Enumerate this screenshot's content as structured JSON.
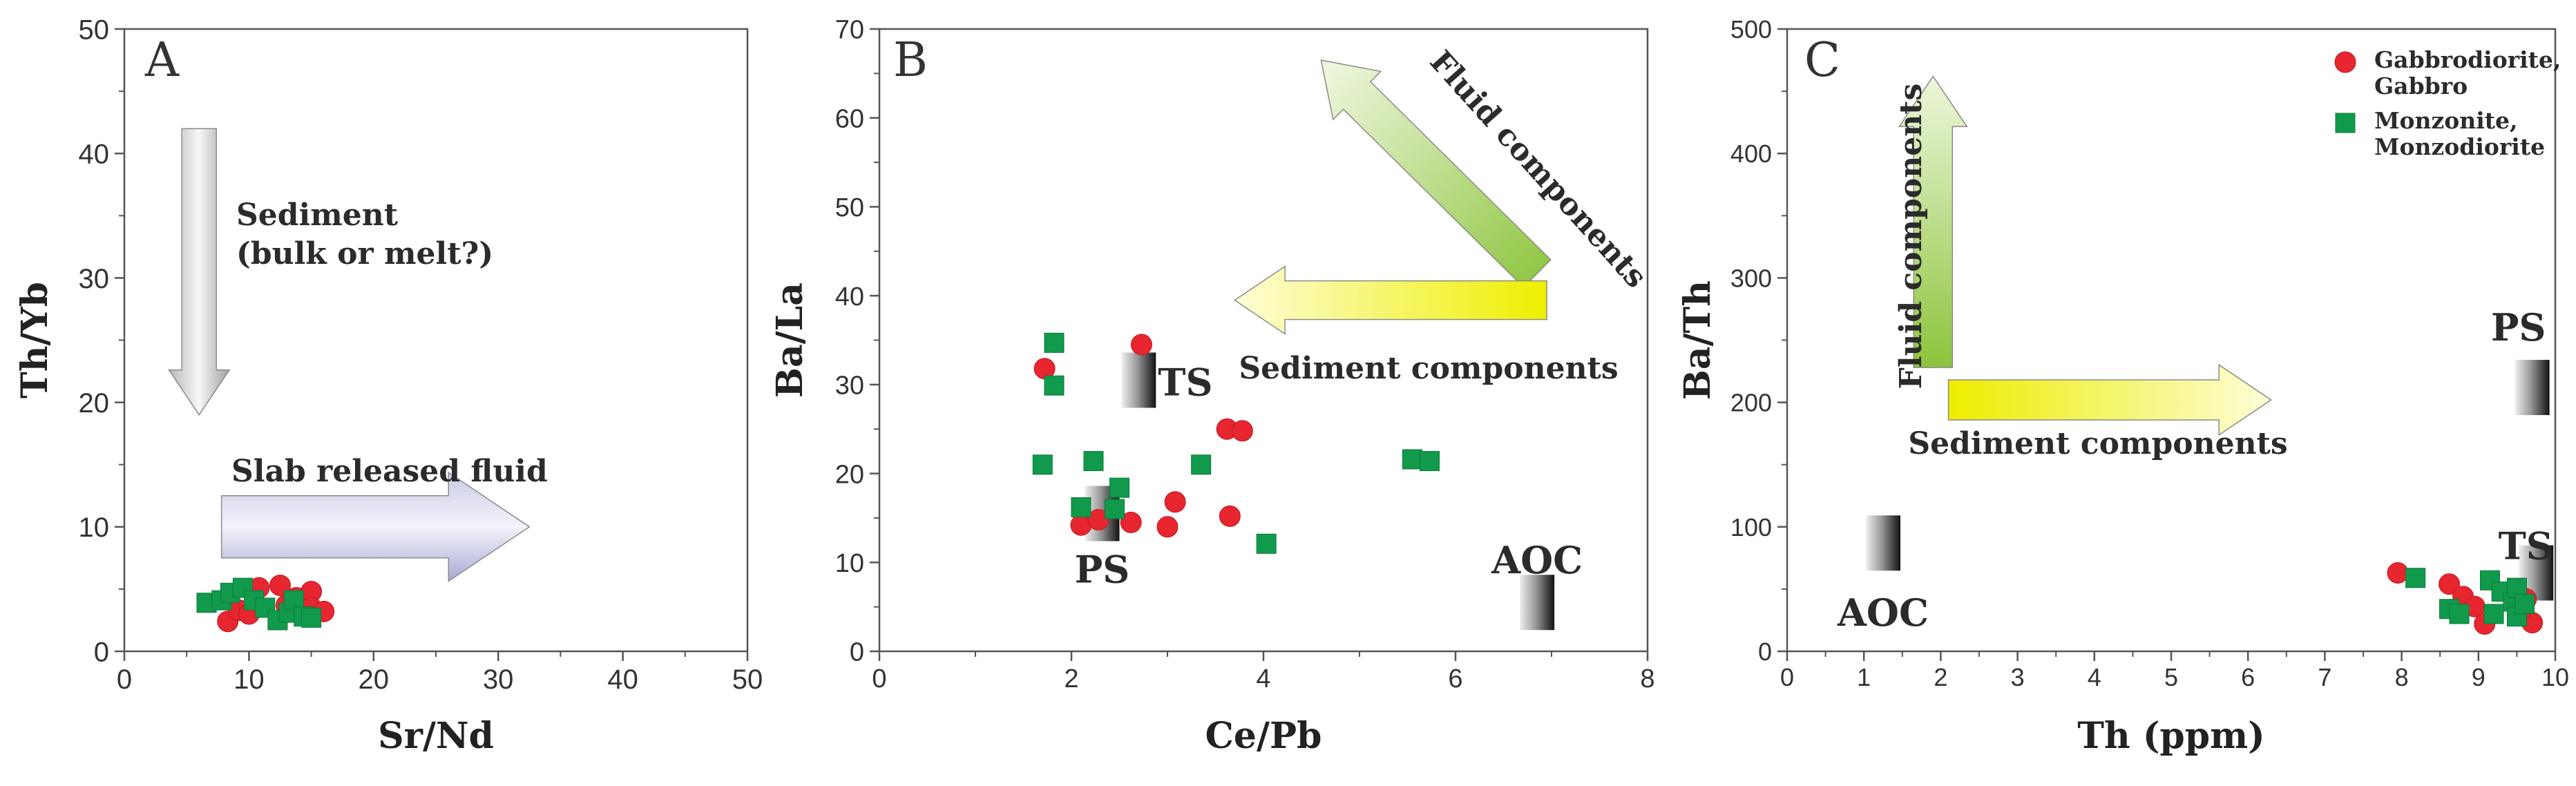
{
  "colors": {
    "circle_marker": "#e8262f",
    "square_marker": "#119a4c",
    "frame": "#555555"
  },
  "legend": {
    "items": [
      {
        "marker": "circle",
        "lines": [
          "Gabbrodiorite,",
          "Gabbro"
        ]
      },
      {
        "marker": "square",
        "lines": [
          "Monzonite,",
          "Monzodiorite"
        ]
      }
    ]
  },
  "chart_data": [
    {
      "type": "scatter",
      "panel": "A",
      "xlabel": "Sr/Nd",
      "ylabel": "Th/Yb",
      "xlim": [
        0,
        50
      ],
      "ylim": [
        0,
        50
      ],
      "xticks": [
        0,
        10,
        20,
        30,
        40,
        50
      ],
      "yticks": [
        0,
        10,
        20,
        30,
        40,
        50
      ],
      "series": [
        {
          "name": "Gabbrodiorite, Gabbro",
          "marker": "circle",
          "points": [
            [
              8.3,
              2.4
            ],
            [
              9.2,
              3.3
            ],
            [
              10.0,
              3.0
            ],
            [
              10.8,
              5.1
            ],
            [
              12.5,
              5.3
            ],
            [
              13.0,
              3.7
            ],
            [
              13.8,
              4.3
            ],
            [
              15.0,
              4.8
            ],
            [
              15.0,
              3.5
            ],
            [
              16.0,
              3.2
            ]
          ]
        },
        {
          "name": "Monzonite, Monzodiorite",
          "marker": "square",
          "points": [
            [
              6.6,
              3.9
            ],
            [
              7.8,
              4.1
            ],
            [
              8.5,
              4.7
            ],
            [
              9.5,
              5.1
            ],
            [
              10.4,
              4.1
            ],
            [
              11.3,
              3.5
            ],
            [
              12.3,
              2.5
            ],
            [
              13.2,
              3.1
            ],
            [
              13.6,
              4.1
            ],
            [
              14.4,
              2.8
            ],
            [
              15.0,
              2.7
            ]
          ]
        }
      ],
      "annotations": [
        {
          "lines": [
            "Sediment",
            "(bulk or melt?)"
          ],
          "arrow": "down",
          "x_from": 6,
          "y_from": 42,
          "x_to": 6,
          "y_to": 19
        },
        {
          "lines": [
            "Slab released fluid"
          ],
          "arrow": "right",
          "x_from": 7.8,
          "y_from": 10,
          "x_to": 32.5,
          "y_to": 10
        }
      ]
    },
    {
      "type": "scatter",
      "panel": "B",
      "xlabel": "Ce/Pb",
      "ylabel": "Ba/La",
      "xlim": [
        0,
        8
      ],
      "ylim": [
        0,
        70
      ],
      "xticks": [
        0,
        2,
        4,
        6,
        8
      ],
      "yticks": [
        0,
        10,
        20,
        30,
        40,
        50,
        60,
        70
      ],
      "series": [
        {
          "name": "Gabbrodiorite, Gabbro",
          "marker": "circle",
          "points": [
            [
              1.72,
              31.8
            ],
            [
              2.73,
              34.5
            ],
            [
              2.1,
              14.2
            ],
            [
              2.28,
              14.8
            ],
            [
              2.62,
              14.5
            ],
            [
              3.0,
              14.0
            ],
            [
              3.08,
              16.8
            ],
            [
              3.62,
              25.0
            ],
            [
              3.78,
              24.8
            ],
            [
              3.65,
              15.2
            ]
          ]
        },
        {
          "name": "Monzonite, Monzodiorite",
          "marker": "square",
          "points": [
            [
              1.82,
              34.7
            ],
            [
              1.82,
              29.9
            ],
            [
              1.7,
              21.0
            ],
            [
              2.23,
              21.4
            ],
            [
              2.1,
              16.2
            ],
            [
              2.45,
              16.0
            ],
            [
              2.5,
              18.4
            ],
            [
              3.35,
              21.0
            ],
            [
              4.03,
              12.1
            ],
            [
              5.55,
              21.6
            ],
            [
              5.73,
              21.4
            ]
          ]
        }
      ],
      "reference_fields": [
        {
          "label": "TS",
          "x": 2.7,
          "y": 30.5
        },
        {
          "label": "PS",
          "x": 2.32,
          "y": 15.5
        },
        {
          "label": "AOC",
          "x": 6.85,
          "y": 5.5
        }
      ],
      "annotations": [
        {
          "lines": [
            "Fluid components"
          ],
          "arrow": "up-left",
          "x_from": 6.85,
          "y_from": 42.5,
          "x_to": 4.6,
          "y_to": 66.5
        },
        {
          "lines": [
            "Sediment components"
          ],
          "arrow": "left",
          "x_from": 6.95,
          "y_from": 39.5,
          "x_to": 3.7,
          "y_to": 39.5
        }
      ]
    },
    {
      "type": "scatter",
      "panel": "C",
      "xlabel": "Th (ppm)",
      "ylabel": "Ba/Th",
      "xlim": [
        0,
        10
      ],
      "ylim": [
        0,
        500
      ],
      "xticks": [
        0,
        1,
        2,
        3,
        4,
        5,
        6,
        7,
        8,
        9,
        10
      ],
      "yticks": [
        0,
        100,
        200,
        300,
        400,
        500
      ],
      "series": [
        {
          "name": "Gabbrodiorite, Gabbro",
          "marker": "circle",
          "points": [
            [
              7.95,
              63
            ],
            [
              8.62,
              54
            ],
            [
              8.8,
              44
            ],
            [
              8.95,
              36
            ],
            [
              9.08,
              22
            ],
            [
              9.5,
              46
            ],
            [
              9.62,
              42
            ],
            [
              9.7,
              23
            ],
            [
              9.55,
              33
            ]
          ]
        },
        {
          "name": "Monzonite, Monzodiorite",
          "marker": "square",
          "points": [
            [
              8.18,
              59
            ],
            [
              8.62,
              34
            ],
            [
              8.75,
              30
            ],
            [
              9.15,
              57
            ],
            [
              9.2,
              30
            ],
            [
              9.3,
              48
            ],
            [
              9.45,
              40
            ],
            [
              9.5,
              51
            ],
            [
              9.5,
              28
            ],
            [
              9.6,
              38
            ]
          ]
        }
      ],
      "reference_fields": [
        {
          "label": "PS",
          "x": 9.7,
          "y": 212
        },
        {
          "label": "TS",
          "x": 9.75,
          "y": 63
        },
        {
          "label": "AOC",
          "x": 1.25,
          "y": 87
        }
      ],
      "annotations": [
        {
          "lines": [
            "Fluid components"
          ],
          "arrow": "up",
          "x_from": 1.9,
          "y_from": 228,
          "x_to": 1.9,
          "y_to": 462
        },
        {
          "lines": [
            "Sediment components"
          ],
          "arrow": "right",
          "x_from": 2.1,
          "y_from": 202,
          "x_to": 6.3,
          "y_to": 202
        }
      ]
    }
  ]
}
